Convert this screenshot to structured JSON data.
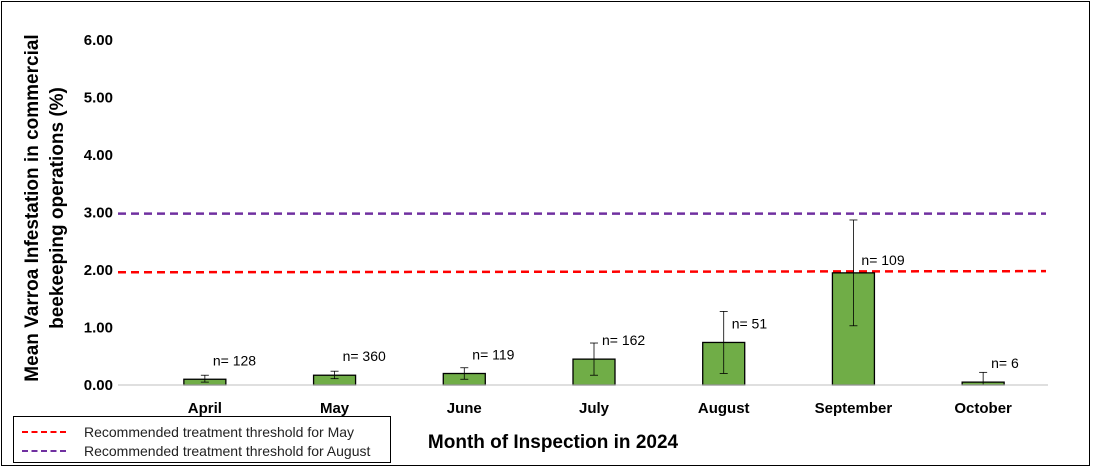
{
  "chart_data": {
    "type": "bar",
    "title": "",
    "xlabel": "Month of Inspection in 2024",
    "ylabel_line1": "Mean Varroa Infestation in commercial",
    "ylabel_line2": "beekeeping operations (%)",
    "ylim": [
      0,
      6
    ],
    "yticks": [
      "0.00",
      "1.00",
      "2.00",
      "3.00",
      "4.00",
      "5.00",
      "6.00"
    ],
    "grid": false,
    "categories": [
      "April",
      "May",
      "June",
      "July",
      "August",
      "September",
      "October"
    ],
    "values": [
      0.1,
      0.17,
      0.2,
      0.45,
      0.74,
      1.95,
      0.05
    ],
    "error_low": [
      0.05,
      0.11,
      0.1,
      0.17,
      0.2,
      1.03,
      0.0
    ],
    "error_high": [
      0.17,
      0.24,
      0.3,
      0.73,
      1.28,
      2.87,
      0.22
    ],
    "n_labels": [
      "n= 128",
      "n= 360",
      "n= 119",
      "n= 162",
      "n= 51",
      "n= 109",
      "n= 6"
    ],
    "bar_color": "#70ad47",
    "thresholds": [
      {
        "name": "Recommended treatment threshold for May",
        "value": 1.96,
        "value_end": 1.98,
        "color": "#ff0000"
      },
      {
        "name": "Recommended treatment threshold for August",
        "value": 2.98,
        "value_end": 2.98,
        "color": "#7030a0"
      }
    ],
    "legend_position": "bottom-left"
  }
}
